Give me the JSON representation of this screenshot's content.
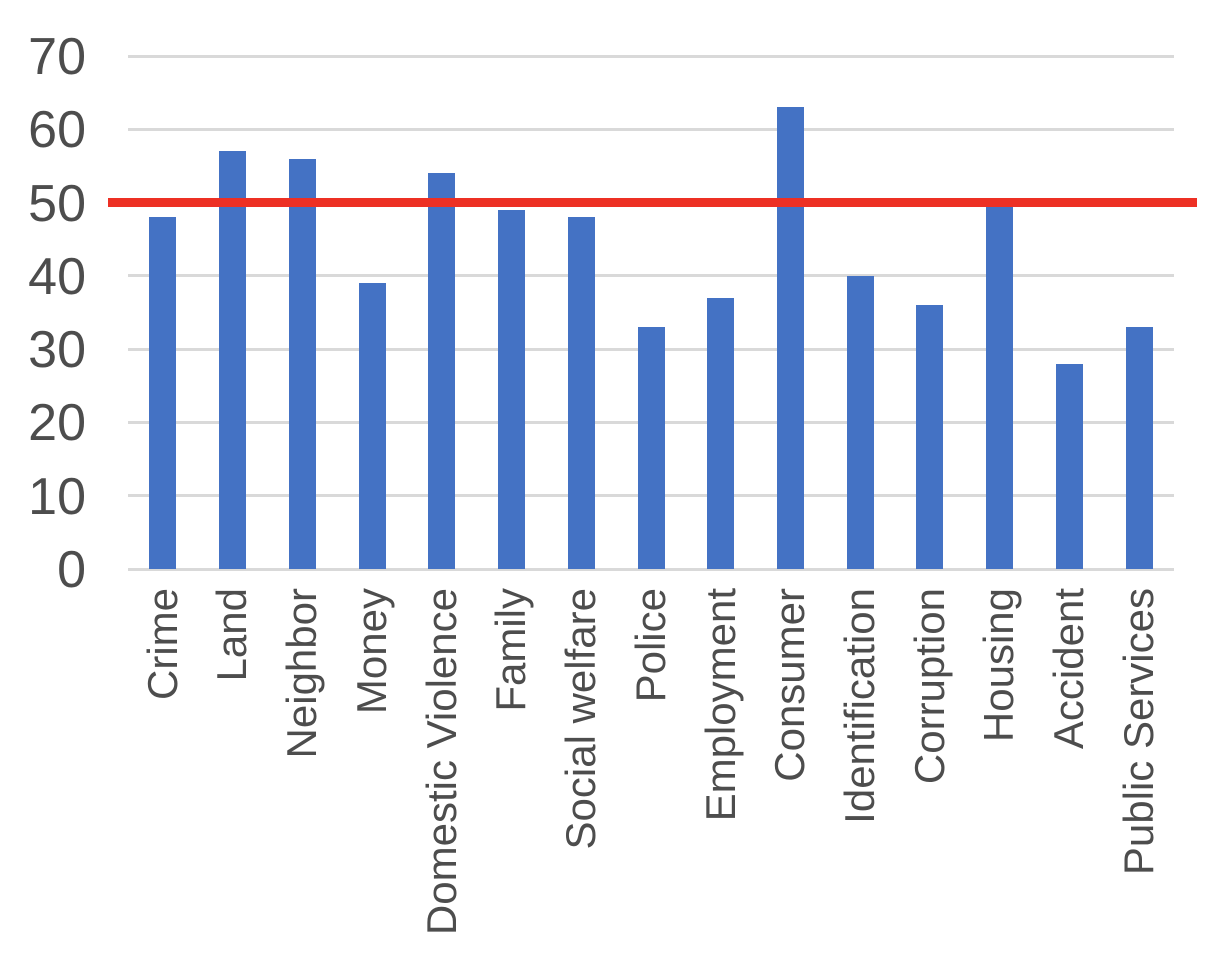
{
  "chart_data": {
    "type": "bar",
    "title": "",
    "xlabel": "",
    "ylabel": "",
    "categories": [
      "Crime",
      "Land",
      "Neighbor",
      "Money",
      "Domestic Violence",
      "Family",
      "Social welfare",
      "Police",
      "Employment",
      "Consumer",
      "Identification",
      "Corruption",
      "Housing",
      "Accident",
      "Public Services"
    ],
    "values": [
      48,
      57,
      56,
      39,
      54,
      49,
      48,
      33,
      37,
      63,
      40,
      36,
      50,
      28,
      33
    ],
    "ylim": [
      0,
      70
    ],
    "yticks": [
      0,
      10,
      20,
      30,
      40,
      50,
      60,
      70
    ],
    "grid": true,
    "legend": false,
    "reference_line": {
      "value": 50,
      "color": "#ED3024"
    },
    "colors": {
      "bar": "#4472C4",
      "gridline": "#D9D9D9",
      "tick_label": "#4D4D4D",
      "background": "#FFFFFF"
    }
  }
}
